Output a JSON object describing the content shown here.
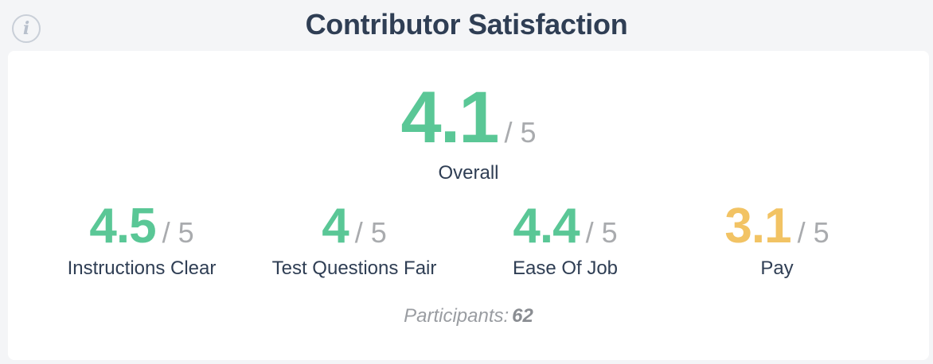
{
  "header": {
    "info_symbol": "i",
    "title": "Contributor Satisfaction"
  },
  "overall": {
    "score": "4.1",
    "out_of": "/ 5",
    "label": "Overall",
    "color": "#5ac796"
  },
  "metrics": [
    {
      "score": "4.5",
      "out_of": "/ 5",
      "label": "Instructions Clear",
      "color": "#5ac796"
    },
    {
      "score": "4",
      "out_of": "/ 5",
      "label": "Test Questions Fair",
      "color": "#5ac796"
    },
    {
      "score": "4.4",
      "out_of": "/ 5",
      "label": "Ease Of Job",
      "color": "#5ac796"
    },
    {
      "score": "3.1",
      "out_of": "/ 5",
      "label": "Pay",
      "color": "#f2c364"
    }
  ],
  "participants": {
    "label": "Participants:",
    "count": "62"
  },
  "colors": {
    "good": "#5ac796",
    "warning": "#f2c364",
    "muted": "#a9abae",
    "heading": "#2f3e54"
  }
}
